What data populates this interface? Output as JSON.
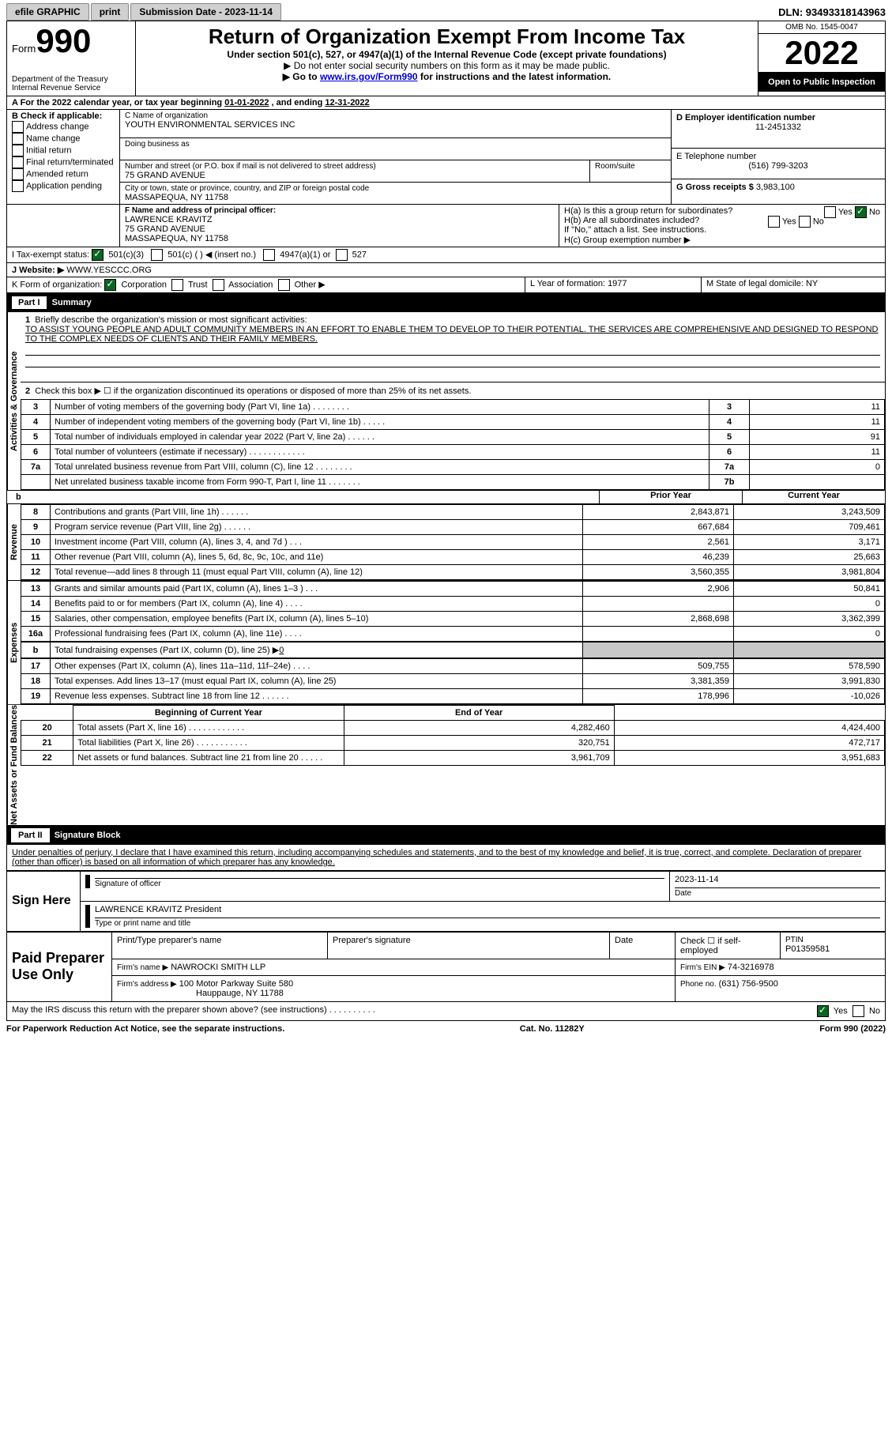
{
  "topbar": {
    "efile": "efile GRAPHIC",
    "print": "print",
    "sub_date_label": "Submission Date - 2023-11-14",
    "dln": "DLN: 93493318143963"
  },
  "header": {
    "form_prefix": "Form",
    "form_number": "990",
    "title": "Return of Organization Exempt From Income Tax",
    "subtitle": "Under section 501(c), 527, or 4947(a)(1) of the Internal Revenue Code (except private foundations)",
    "warn": "▶ Do not enter social security numbers on this form as it may be made public.",
    "goto_pre": "▶ Go to ",
    "goto_link": "www.irs.gov/Form990",
    "goto_post": " for instructions and the latest information.",
    "dept": "Department of the Treasury",
    "irs": "Internal Revenue Service",
    "omb_label": "OMB No. 1545-0047",
    "year": "2022",
    "open": "Open to Public Inspection"
  },
  "a_line": {
    "text": "A For the 2022 calendar year, or tax year beginning ",
    "begin": "01-01-2022",
    "mid": " , and ending ",
    "end": "12-31-2022"
  },
  "b_block": {
    "label": "B Check if applicable:",
    "items": [
      "Address change",
      "Name change",
      "Initial return",
      "Final return/terminated",
      "Amended return",
      "Application pending"
    ]
  },
  "c_block": {
    "c_label": "C Name of organization",
    "org": "YOUTH ENVIRONMENTAL SERVICES INC",
    "dba": "Doing business as",
    "street_label": "Number and street (or P.O. box if mail is not delivered to street address)",
    "room_label": "Room/suite",
    "street": "75 GRAND AVENUE",
    "city_label": "City or town, state or province, country, and ZIP or foreign postal code",
    "city": "MASSAPEQUA, NY  11758"
  },
  "d_block": {
    "label": "D Employer identification number",
    "value": "11-2451332"
  },
  "e_block": {
    "label": "E Telephone number",
    "value": "(516) 799-3203"
  },
  "g_block": {
    "label": "G Gross receipts $",
    "value": "3,983,100"
  },
  "f_block": {
    "label": "F  Name and address of principal officer:",
    "name": "LAWRENCE KRAVITZ",
    "street": "75 GRAND AVENUE",
    "city": "MASSAPEQUA, NY  11758"
  },
  "h_block": {
    "ha": "H(a)  Is this a group return for subordinates?",
    "hb": "H(b)  Are all subordinates included?",
    "hnote": "If \"No,\" attach a list. See instructions.",
    "hc": "H(c)  Group exemption number ▶",
    "yes": "Yes",
    "no": "No"
  },
  "i_block": {
    "label": "I   Tax-exempt status:",
    "o1": "501(c)(3)",
    "o2": "501(c) (   ) ◀ (insert no.)",
    "o3": "4947(a)(1) or",
    "o4": "527"
  },
  "j_block": {
    "label": "J   Website: ▶",
    "value": "WWW.YESCCC.ORG"
  },
  "k_block": {
    "label": "K Form of organization:",
    "corp": "Corporation",
    "trust": "Trust",
    "assoc": "Association",
    "other": "Other ▶"
  },
  "l_block": {
    "label": "L Year of formation:",
    "value": "1977"
  },
  "m_block": {
    "label": "M State of legal domicile:",
    "value": "NY"
  },
  "part1": {
    "label": "Part I",
    "title": "Summary"
  },
  "summary": {
    "l1_label": "Briefly describe the organization's mission or most significant activities:",
    "l1_text": "TO ASSIST YOUNG PEOPLE AND ADULT COMMUNITY MEMBERS IN AN EFFORT TO ENABLE THEM TO DEVELOP TO THEIR POTENTIAL. THE SERVICES ARE COMPREHENSIVE AND DESIGNED TO RESPOND TO THE COMPLEX NEEDS OF CLIENTS AND THEIR FAMILY MEMBERS.",
    "l2": "Check this box ▶ ☐ if the organization discontinued its operations or disposed of more than 25% of its net assets.",
    "rows_small": [
      {
        "n": "3",
        "t": "Number of voting members of the governing body (Part VI, line 1a)   .     .     .     .     .     .     .     .",
        "b": "3",
        "v": "11"
      },
      {
        "n": "4",
        "t": "Number of independent voting members of the governing body (Part VI, line 1b)   .     .     .     .     .",
        "b": "4",
        "v": "11"
      },
      {
        "n": "5",
        "t": "Total number of individuals employed in calendar year 2022 (Part V, line 2a)   .     .     .     .     .     .",
        "b": "5",
        "v": "91"
      },
      {
        "n": "6",
        "t": "Total number of volunteers (estimate if necessary)    .     .     .     .     .     .     .     .     .     .     .     .",
        "b": "6",
        "v": "11"
      },
      {
        "n": "7a",
        "t": "Total unrelated business revenue from Part VIII, column (C), line 12   .     .     .     .     .     .     .     .",
        "b": "7a",
        "v": "0"
      },
      {
        "n": "",
        "t": "Net unrelated business taxable income from Form 990-T, Part I, line 11   .     .     .     .     .     .     .",
        "b": "7b",
        "v": ""
      }
    ],
    "col_prior": "Prior Year",
    "col_curr": "Current Year",
    "col_beg": "Beginning of Current Year",
    "col_end": "End of Year",
    "side_ag": "Activities & Governance",
    "side_rev": "Revenue",
    "side_exp": "Expenses",
    "side_net": "Net Assets or Fund Balances",
    "line_b": "b",
    "revenue": [
      {
        "n": "8",
        "t": "Contributions and grants (Part VIII, line 1h)   .     .     .     .     .     .",
        "p": "2,843,871",
        "c": "3,243,509"
      },
      {
        "n": "9",
        "t": "Program service revenue (Part VIII, line 2g)   .     .     .     .     .     .",
        "p": "667,684",
        "c": "709,461"
      },
      {
        "n": "10",
        "t": "Investment income (Part VIII, column (A), lines 3, 4, and 7d )   .     .     .",
        "p": "2,561",
        "c": "3,171"
      },
      {
        "n": "11",
        "t": "Other revenue (Part VIII, column (A), lines 5, 6d, 8c, 9c, 10c, and 11e)",
        "p": "46,239",
        "c": "25,663"
      },
      {
        "n": "12",
        "t": "Total revenue—add lines 8 through 11 (must equal Part VIII, column (A), line 12)",
        "p": "3,560,355",
        "c": "3,981,804"
      }
    ],
    "expenses": [
      {
        "n": "13",
        "t": "Grants and similar amounts paid (Part IX, column (A), lines 1–3 )   .     .     .",
        "p": "2,906",
        "c": "50,841"
      },
      {
        "n": "14",
        "t": "Benefits paid to or for members (Part IX, column (A), line 4)   .     .     .     .",
        "p": "",
        "c": "0"
      },
      {
        "n": "15",
        "t": "Salaries, other compensation, employee benefits (Part IX, column (A), lines 5–10)",
        "p": "2,868,698",
        "c": "3,362,399"
      },
      {
        "n": "16a",
        "t": "Professional fundraising fees (Part IX, column (A), line 11e)   .     .     .     .",
        "p": "",
        "c": "0"
      }
    ],
    "exp_b_pre": "Total fundraising expenses (Part IX, column (D), line 25) ▶",
    "exp_b_val": "0",
    "expenses2": [
      {
        "n": "17",
        "t": "Other expenses (Part IX, column (A), lines 11a–11d, 11f–24e)   .     .     .     .",
        "p": "509,755",
        "c": "578,590"
      },
      {
        "n": "18",
        "t": "Total expenses. Add lines 13–17 (must equal Part IX, column (A), line 25)",
        "p": "3,381,359",
        "c": "3,991,830"
      },
      {
        "n": "19",
        "t": "Revenue less expenses. Subtract line 18 from line 12  .     .     .     .     .     .",
        "p": "178,996",
        "c": "-10,026"
      }
    ],
    "netassets": [
      {
        "n": "20",
        "t": "Total assets (Part X, line 16)  .     .     .     .     .     .     .     .     .     .     .     .",
        "p": "4,282,460",
        "c": "4,424,400"
      },
      {
        "n": "21",
        "t": "Total liabilities (Part X, line 26)  .     .     .     .     .     .     .     .     .     .     .",
        "p": "320,751",
        "c": "472,717"
      },
      {
        "n": "22",
        "t": "Net assets or fund balances. Subtract line 21 from line 20   .     .     .     .     .",
        "p": "3,961,709",
        "c": "3,951,683"
      }
    ]
  },
  "part2": {
    "label": "Part II",
    "title": "Signature Block",
    "decl": "Under penalties of perjury, I declare that I have examined this return, including accompanying schedules and statements, and to the best of my knowledge and belief, it is true, correct, and complete. Declaration of preparer (other than officer) is based on all information of which preparer has any knowledge.",
    "sign_here": "Sign Here",
    "sig_officer": "Signature of officer",
    "sig_date": "2023-11-14",
    "date": "Date",
    "name_title": "LAWRENCE KRAVITZ  President",
    "type_name": "Type or print name and title",
    "paid_prep": "Paid Preparer Use Only",
    "pp_name_label": "Print/Type preparer's name",
    "pp_sig_label": "Preparer's signature",
    "pp_date_label": "Date",
    "pp_check": "Check ☐ if self-employed",
    "ptin_label": "PTIN",
    "ptin": "P01359581",
    "firm_name_label": "Firm's name    ▶",
    "firm_name": "NAWROCKI SMITH LLP",
    "firm_ein_label": "Firm's EIN ▶",
    "firm_ein": "74-3216978",
    "firm_addr_label": "Firm's address ▶",
    "firm_addr1": "100 Motor Parkway Suite 580",
    "firm_addr2": "Hauppauge, NY  11788",
    "phone_label": "Phone no.",
    "phone": "(631) 756-9500",
    "discuss": "May the IRS discuss this return with the preparer shown above? (see instructions)   .     .     .     .     .     .     .     .     .     .",
    "yes": "Yes",
    "no": "No"
  },
  "footer": {
    "left": "For Paperwork Reduction Act Notice, see the separate instructions.",
    "mid": "Cat. No. 11282Y",
    "right": "Form 990 (2022)"
  }
}
